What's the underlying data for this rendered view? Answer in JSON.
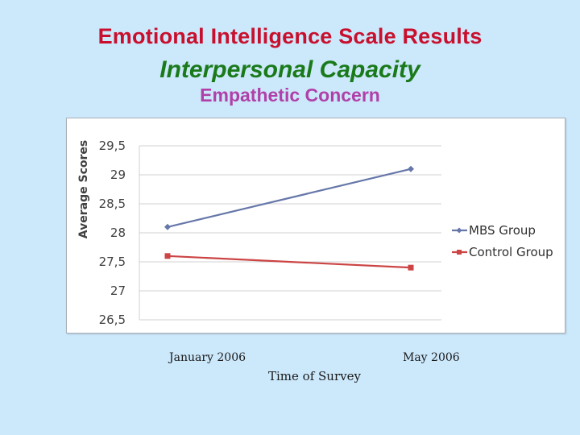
{
  "slide": {
    "title": "Emotional Intelligence Scale Results",
    "subtitle": "Interpersonal Capacity",
    "subheading": "Empathetic Concern"
  },
  "colors": {
    "background": "#cce8fb",
    "title": "#c8102e",
    "subtitle": "#1a7a1a",
    "subheading": "#b040a8"
  },
  "chart_data": {
    "type": "line",
    "categories": [
      "January 2006",
      "May 2006"
    ],
    "series": [
      {
        "name": "MBS Group",
        "values": [
          28.1,
          29.1
        ],
        "color": "#6677aa",
        "marker": "diamond"
      },
      {
        "name": "Control Group",
        "values": [
          27.6,
          27.4
        ],
        "color": "#cc4444",
        "marker": "square"
      }
    ],
    "ylabel": "Average Scores",
    "xlabel": "Time of Survey",
    "ylim": [
      26.5,
      29.5
    ],
    "yticks": [
      "26,5",
      "27",
      "27,5",
      "28",
      "28,5",
      "29",
      "29,5"
    ],
    "grid": true,
    "legend": "right"
  }
}
